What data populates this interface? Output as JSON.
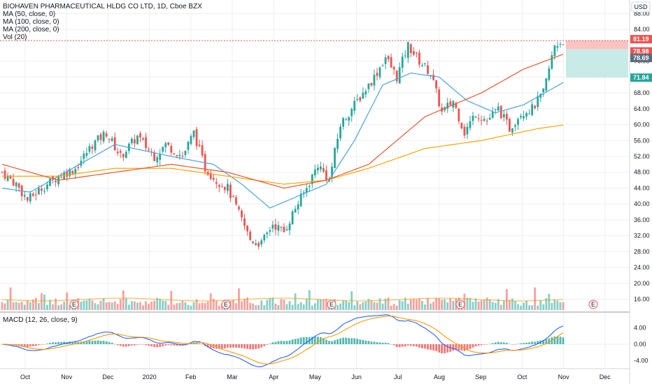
{
  "legend": {
    "title": "BIOHAVEN PHARMACEUTICAL HLDG CO LTD, 1D, Cboe BZX",
    "ma50": "MA (50, close, 0)",
    "ma100": "MA (100, close, 0)",
    "ma200": "MA (200, close, 0)",
    "vol": "Vol (20)"
  },
  "macd_legend": "MACD (12, 26, close, 9)",
  "currency": "USD",
  "price_badges": {
    "target": "81.19",
    "last": "78.98",
    "current": "78.69",
    "stop": "71.84"
  },
  "colors": {
    "up": "#26a69a",
    "down": "#ef5350",
    "ma50": "#4aa3df",
    "ma100": "#f7a600",
    "ma200": "#e8572f",
    "macd": "#2962ff",
    "signal": "#ff9800",
    "grid": "#eceff2",
    "target_zone": "#f8c3c1",
    "stop_zone": "#c8ebe7"
  },
  "chart_data": {
    "type": "candlestick",
    "price_axis": {
      "ticks": [
        "88.00",
        "84.00",
        "76.00",
        "72.00",
        "68.00",
        "64.00",
        "60.00",
        "56.00",
        "52.00",
        "48.00",
        "44.00",
        "40.00",
        "36.00",
        "32.00",
        "28.00",
        "24.00",
        "20.00",
        "16.00"
      ],
      "ylim": [
        14,
        90
      ]
    },
    "macd_axis": {
      "ticks": [
        "4.00",
        "0.00",
        "-4.00"
      ],
      "ylim": [
        -6,
        6
      ]
    },
    "x_labels": [
      "Oct",
      "Nov",
      "Dec",
      "2020",
      "Feb",
      "Mar",
      "Apr",
      "May",
      "Jun",
      "Jul",
      "Aug",
      "Sep",
      "Oct",
      "Nov",
      "Dec"
    ],
    "earnings_markers": [
      "E",
      "E",
      "E",
      "E",
      "E"
    ],
    "anchors": [
      [
        0,
        48
      ],
      [
        5,
        45
      ],
      [
        9,
        41
      ],
      [
        14,
        44
      ],
      [
        20,
        47
      ],
      [
        26,
        49
      ],
      [
        32,
        55
      ],
      [
        37,
        58
      ],
      [
        42,
        52
      ],
      [
        48,
        57
      ],
      [
        54,
        52
      ],
      [
        58,
        55
      ],
      [
        64,
        52
      ],
      [
        68,
        58
      ],
      [
        72,
        49
      ],
      [
        76,
        46
      ],
      [
        80,
        44
      ],
      [
        85,
        36
      ],
      [
        88,
        31
      ],
      [
        92,
        30
      ],
      [
        96,
        35
      ],
      [
        100,
        33
      ],
      [
        104,
        39
      ],
      [
        108,
        44
      ],
      [
        112,
        50
      ],
      [
        116,
        46
      ],
      [
        120,
        60
      ],
      [
        124,
        64
      ],
      [
        128,
        68
      ],
      [
        132,
        72
      ],
      [
        136,
        77
      ],
      [
        140,
        72
      ],
      [
        144,
        80
      ],
      [
        148,
        76
      ],
      [
        152,
        73
      ],
      [
        156,
        63
      ],
      [
        160,
        66
      ],
      [
        164,
        58
      ],
      [
        168,
        63
      ],
      [
        172,
        61
      ],
      [
        176,
        64
      ],
      [
        180,
        59
      ],
      [
        184,
        63
      ],
      [
        188,
        64
      ],
      [
        192,
        68
      ],
      [
        196,
        80
      ],
      [
        199,
        81
      ]
    ],
    "ma50": [
      [
        0,
        44
      ],
      [
        10,
        43
      ],
      [
        20,
        47
      ],
      [
        40,
        55
      ],
      [
        60,
        52
      ],
      [
        75,
        50
      ],
      [
        85,
        45
      ],
      [
        95,
        39
      ],
      [
        105,
        42
      ],
      [
        115,
        45
      ],
      [
        125,
        56
      ],
      [
        135,
        70
      ],
      [
        145,
        73
      ],
      [
        155,
        72
      ],
      [
        165,
        66
      ],
      [
        175,
        63
      ],
      [
        185,
        65
      ],
      [
        195,
        69
      ],
      [
        200,
        71
      ]
    ],
    "ma100": [
      [
        0,
        47
      ],
      [
        20,
        47
      ],
      [
        40,
        49
      ],
      [
        60,
        49
      ],
      [
        80,
        47
      ],
      [
        100,
        45
      ],
      [
        115,
        46
      ],
      [
        130,
        49
      ],
      [
        150,
        54
      ],
      [
        170,
        56
      ],
      [
        190,
        59
      ],
      [
        200,
        60
      ]
    ],
    "ma200": [
      [
        0,
        50
      ],
      [
        20,
        46
      ],
      [
        40,
        48
      ],
      [
        60,
        50
      ],
      [
        80,
        48
      ],
      [
        100,
        44
      ],
      [
        115,
        46
      ],
      [
        130,
        50
      ],
      [
        150,
        62
      ],
      [
        170,
        68
      ],
      [
        185,
        74
      ],
      [
        200,
        78
      ]
    ]
  }
}
